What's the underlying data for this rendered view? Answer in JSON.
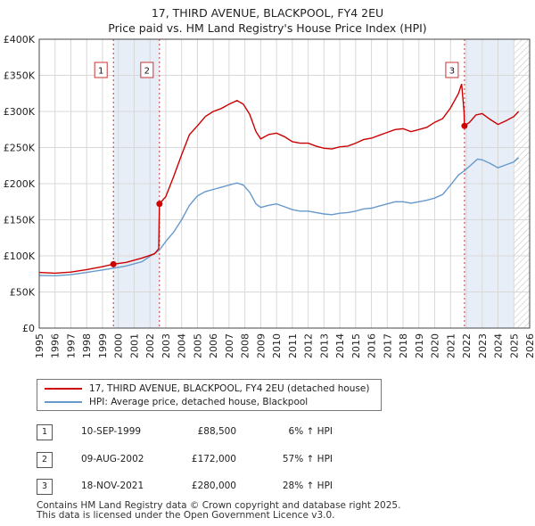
{
  "chart_data": {
    "type": "line",
    "title": "17, THIRD AVENUE, BLACKPOOL, FY4 2EU",
    "subtitle": "Price paid vs. HM Land Registry's House Price Index (HPI)",
    "xlim": [
      1995,
      2026
    ],
    "ylim": [
      0,
      400000
    ],
    "x_ticks": [
      1995,
      1996,
      1997,
      1998,
      1999,
      2000,
      2001,
      2002,
      2003,
      2004,
      2005,
      2006,
      2007,
      2008,
      2009,
      2010,
      2011,
      2012,
      2013,
      2014,
      2015,
      2016,
      2017,
      2018,
      2019,
      2020,
      2021,
      2022,
      2023,
      2024,
      2025,
      2026
    ],
    "y_ticks": [
      {
        "value": 0,
        "label": "£0"
      },
      {
        "value": 50000,
        "label": "£50K"
      },
      {
        "value": 100000,
        "label": "£100K"
      },
      {
        "value": 150000,
        "label": "£150K"
      },
      {
        "value": 200000,
        "label": "£200K"
      },
      {
        "value": 250000,
        "label": "£250K"
      },
      {
        "value": 300000,
        "label": "£300K"
      },
      {
        "value": 350000,
        "label": "£350K"
      },
      {
        "value": 400000,
        "label": "£400K"
      }
    ],
    "grid": true,
    "colors": {
      "price": "#cc0000",
      "hpi": "#6699cc",
      "shade": "#e8eef8",
      "marker": "#cc0000",
      "grid": "#d8d8d8"
    },
    "shaded_ranges": [
      [
        1999.69,
        2002.6
      ],
      [
        2021.88,
        2025.0
      ]
    ],
    "hatch_from": 2025.0,
    "series": [
      {
        "name": "17, THIRD AVENUE, BLACKPOOL, FY4 2EU (detached house)",
        "points": [
          [
            1995.0,
            77000
          ],
          [
            1996.0,
            76000
          ],
          [
            1997.0,
            77500
          ],
          [
            1998.0,
            81000
          ],
          [
            1999.0,
            85000
          ],
          [
            1999.69,
            88500
          ],
          [
            2000.5,
            91000
          ],
          [
            2001.5,
            97000
          ],
          [
            2002.3,
            103000
          ],
          [
            2002.55,
            110000
          ],
          [
            2002.6,
            172000
          ],
          [
            2003.0,
            182000
          ],
          [
            2003.5,
            210000
          ],
          [
            2004.0,
            240000
          ],
          [
            2004.5,
            268000
          ],
          [
            2005.0,
            280000
          ],
          [
            2005.5,
            293000
          ],
          [
            2006.0,
            300000
          ],
          [
            2006.5,
            304000
          ],
          [
            2007.0,
            310000
          ],
          [
            2007.5,
            315000
          ],
          [
            2007.9,
            310000
          ],
          [
            2008.3,
            296000
          ],
          [
            2008.7,
            272000
          ],
          [
            2009.0,
            262000
          ],
          [
            2009.5,
            268000
          ],
          [
            2010.0,
            270000
          ],
          [
            2010.5,
            265000
          ],
          [
            2011.0,
            258000
          ],
          [
            2011.5,
            256000
          ],
          [
            2012.0,
            256000
          ],
          [
            2012.5,
            252000
          ],
          [
            2013.0,
            249000
          ],
          [
            2013.5,
            248000
          ],
          [
            2014.0,
            251000
          ],
          [
            2014.5,
            252000
          ],
          [
            2015.0,
            256000
          ],
          [
            2015.5,
            261000
          ],
          [
            2016.0,
            263000
          ],
          [
            2016.5,
            267000
          ],
          [
            2017.0,
            271000
          ],
          [
            2017.5,
            275000
          ],
          [
            2018.0,
            276000
          ],
          [
            2018.5,
            272000
          ],
          [
            2019.0,
            275000
          ],
          [
            2019.5,
            278000
          ],
          [
            2020.0,
            285000
          ],
          [
            2020.5,
            290000
          ],
          [
            2021.0,
            305000
          ],
          [
            2021.5,
            325000
          ],
          [
            2021.7,
            338000
          ],
          [
            2021.85,
            300000
          ],
          [
            2021.88,
            280000
          ],
          [
            2022.2,
            285000
          ],
          [
            2022.6,
            295000
          ],
          [
            2023.0,
            297000
          ],
          [
            2023.5,
            289000
          ],
          [
            2024.0,
            282000
          ],
          [
            2024.5,
            287000
          ],
          [
            2025.0,
            293000
          ],
          [
            2025.3,
            300000
          ]
        ]
      },
      {
        "name": "HPI: Average price, detached house, Blackpool",
        "points": [
          [
            1995.0,
            73000
          ],
          [
            1996.0,
            72500
          ],
          [
            1997.0,
            74000
          ],
          [
            1998.0,
            77000
          ],
          [
            1999.0,
            80500
          ],
          [
            1999.69,
            83000
          ],
          [
            2000.5,
            86000
          ],
          [
            2001.5,
            92000
          ],
          [
            2002.6,
            108000
          ],
          [
            2003.0,
            120000
          ],
          [
            2003.5,
            133000
          ],
          [
            2004.0,
            150000
          ],
          [
            2004.5,
            170000
          ],
          [
            2005.0,
            183000
          ],
          [
            2005.5,
            189000
          ],
          [
            2006.0,
            192000
          ],
          [
            2006.5,
            195000
          ],
          [
            2007.0,
            198000
          ],
          [
            2007.5,
            201000
          ],
          [
            2007.9,
            198000
          ],
          [
            2008.3,
            188000
          ],
          [
            2008.7,
            172000
          ],
          [
            2009.0,
            167000
          ],
          [
            2009.5,
            170000
          ],
          [
            2010.0,
            172000
          ],
          [
            2010.5,
            168000
          ],
          [
            2011.0,
            164000
          ],
          [
            2011.5,
            162000
          ],
          [
            2012.0,
            162000
          ],
          [
            2012.5,
            160000
          ],
          [
            2013.0,
            158000
          ],
          [
            2013.5,
            157000
          ],
          [
            2014.0,
            159000
          ],
          [
            2014.5,
            160000
          ],
          [
            2015.0,
            162000
          ],
          [
            2015.5,
            165000
          ],
          [
            2016.0,
            166000
          ],
          [
            2016.5,
            169000
          ],
          [
            2017.0,
            172000
          ],
          [
            2017.5,
            175000
          ],
          [
            2018.0,
            175000
          ],
          [
            2018.5,
            173000
          ],
          [
            2019.0,
            175000
          ],
          [
            2019.5,
            177000
          ],
          [
            2020.0,
            180000
          ],
          [
            2020.5,
            185000
          ],
          [
            2021.0,
            198000
          ],
          [
            2021.5,
            212000
          ],
          [
            2021.88,
            218000
          ],
          [
            2022.3,
            226000
          ],
          [
            2022.7,
            234000
          ],
          [
            2023.0,
            233000
          ],
          [
            2023.5,
            228000
          ],
          [
            2024.0,
            222000
          ],
          [
            2024.5,
            226000
          ],
          [
            2025.0,
            230000
          ],
          [
            2025.3,
            236000
          ]
        ]
      }
    ],
    "transactions": [
      {
        "num": "1",
        "x": 1999.69,
        "price": 88500,
        "date": "10-SEP-1999",
        "price_label": "£88,500",
        "hpi_label": "6% ↑ HPI"
      },
      {
        "num": "2",
        "x": 2002.6,
        "price": 172000,
        "date": "09-AUG-2002",
        "price_label": "£172,000",
        "hpi_label": "57% ↑ HPI"
      },
      {
        "num": "3",
        "x": 2021.88,
        "price": 280000,
        "date": "18-NOV-2021",
        "price_label": "£280,000",
        "hpi_label": "28% ↑ HPI"
      }
    ]
  },
  "legend": {
    "price_label": "17, THIRD AVENUE, BLACKPOOL, FY4 2EU (detached house)",
    "hpi_label": "HPI: Average price, detached house, Blackpool"
  },
  "footer": {
    "line1": "Contains HM Land Registry data © Crown copyright and database right 2025.",
    "line2": "This data is licensed under the Open Government Licence v3.0."
  }
}
